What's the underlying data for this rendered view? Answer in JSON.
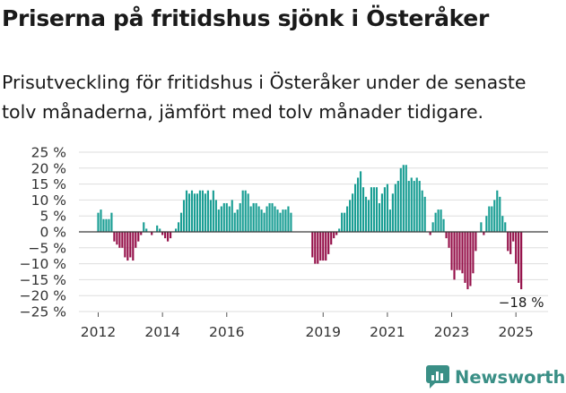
{
  "header": {
    "title": "Priserna på fritidshus sjönk i Österåker",
    "subtitle": "Prisutveckling för fritidshus i Österåker under de senaste tolv månaderna, jämfört med tolv månader tidigare."
  },
  "brand": {
    "name": "Newsworthy",
    "icon": "newsworthy-logo-icon"
  },
  "colors": {
    "positive": "#1a9e94",
    "negative": "#95114a",
    "grid": "#dedede",
    "zero": "#3a3a3a"
  },
  "chart_data": {
    "type": "bar",
    "title": "Priserna på fritidshus sjönk i Österåker",
    "unit": "%",
    "ylim": [
      -25,
      25
    ],
    "yticks": [
      25,
      20,
      15,
      10,
      5,
      0,
      -5,
      -10,
      -15,
      -20,
      -25
    ],
    "ytick_labels": [
      "25 %",
      "20 %",
      "15 %",
      "10 %",
      "5 %",
      "0 %",
      "−5 %",
      "−10 %",
      "−15 %",
      "−20 %",
      "−25 %"
    ],
    "x_start": 2012.0,
    "x_step": 0.0833333,
    "xlim": [
      2011.4,
      2026.0
    ],
    "xticks": [
      2012,
      2014,
      2016,
      2019,
      2021,
      2023,
      2025
    ],
    "xtick_labels": [
      "2012",
      "2014",
      "2016",
      "2019",
      "2021",
      "2023",
      "2025"
    ],
    "values": [
      6,
      7,
      4,
      4,
      4,
      6,
      -3,
      -4,
      -5,
      -5,
      -8,
      -9,
      -8,
      -9,
      -5,
      -3,
      -1,
      3,
      1,
      0,
      -1,
      0,
      2,
      1,
      -1,
      -2,
      -3,
      -2,
      0,
      1,
      3,
      6,
      10,
      13,
      12,
      13,
      12,
      12,
      13,
      13,
      12,
      13,
      10,
      13,
      10,
      7,
      8,
      9,
      9,
      8,
      10,
      6,
      7,
      9,
      13,
      13,
      12,
      8,
      9,
      9,
      8,
      7,
      6,
      8,
      9,
      9,
      8,
      7,
      6,
      7,
      7,
      8,
      6,
      0,
      0,
      0,
      0,
      0,
      0,
      0,
      -8,
      -10,
      -10,
      -9,
      -9,
      -9,
      -7,
      -4,
      -2,
      -1,
      1,
      6,
      6,
      8,
      10,
      12,
      15,
      17,
      19,
      14,
      11,
      10,
      14,
      14,
      14,
      9,
      12,
      14,
      15,
      7,
      12,
      15,
      16,
      20,
      21,
      21,
      16,
      17,
      16,
      17,
      16,
      13,
      11,
      0,
      -1,
      3,
      6,
      7,
      7,
      4,
      -2,
      -5,
      -12,
      -15,
      -12,
      -12,
      -13,
      -16,
      -18,
      -17,
      -13,
      -6,
      0,
      3,
      -1,
      5,
      8,
      8,
      10,
      13,
      11,
      5,
      3,
      -6,
      -7,
      -3,
      -10,
      -16,
      -18
    ],
    "end_label": "−18 %"
  }
}
